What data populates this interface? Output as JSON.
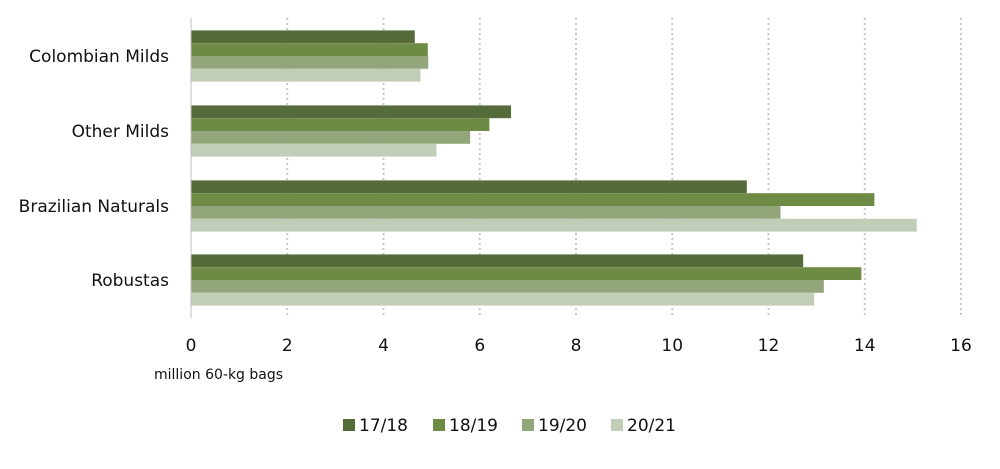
{
  "chart_data": {
    "type": "bar",
    "orientation": "horizontal",
    "categories": [
      "Colombian Milds",
      "Other Milds",
      "Brazilian Naturals",
      "Robustas"
    ],
    "series": [
      {
        "name": "17/18",
        "color": "#556b3a",
        "values": [
          4.65,
          6.65,
          11.55,
          12.72
        ]
      },
      {
        "name": "18/19",
        "color": "#6e8b46",
        "values": [
          4.92,
          6.2,
          14.2,
          13.93
        ]
      },
      {
        "name": "19/20",
        "color": "#93a67b",
        "values": [
          4.93,
          5.8,
          12.25,
          13.15
        ]
      },
      {
        "name": "20/21",
        "color": "#c2cdb7",
        "values": [
          4.77,
          5.1,
          15.08,
          12.95
        ]
      }
    ],
    "xlabel": "million 60-kg bags",
    "ylabel": "",
    "xlim": [
      0,
      16
    ],
    "xticks": [
      0,
      2,
      4,
      6,
      8,
      10,
      12,
      14,
      16
    ],
    "grid": "vertical dotted",
    "legend_position": "bottom"
  }
}
